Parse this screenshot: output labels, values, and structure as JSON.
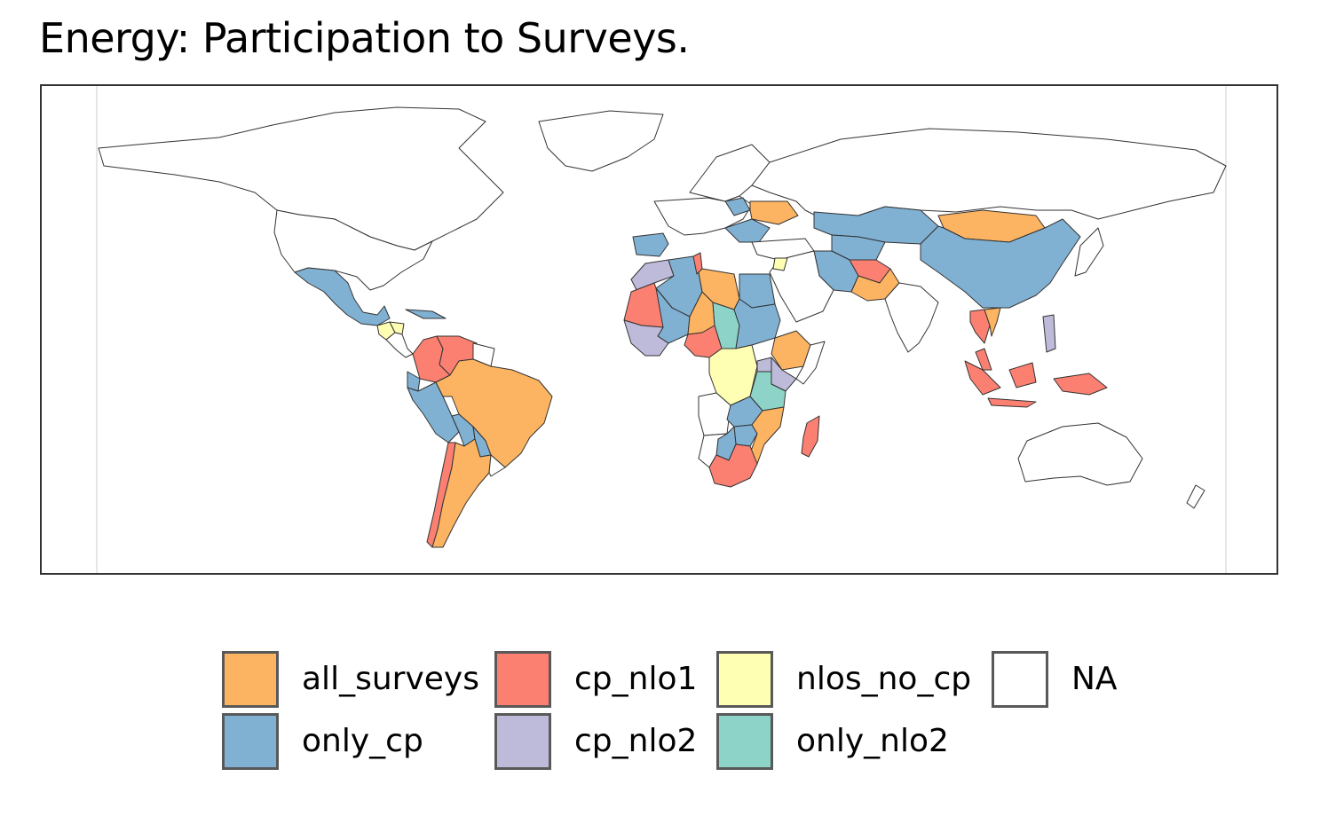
{
  "title": "Energy: Participation to Surveys.",
  "legend": {
    "items": [
      {
        "key": "all_surveys",
        "label": "all_surveys",
        "color": "#FDB462"
      },
      {
        "key": "only_cp",
        "label": "only_cp",
        "color": "#80B1D3"
      },
      {
        "key": "cp_nlo1",
        "label": "cp_nlo1",
        "color": "#FB8072"
      },
      {
        "key": "cp_nlo2",
        "label": "cp_nlo2",
        "color": "#BEBADA"
      },
      {
        "key": "nlos_no_cp",
        "label": "nlos_no_cp",
        "color": "#FFFFB3"
      },
      {
        "key": "only_nlo2",
        "label": "only_nlo2",
        "color": "#8DD3C7"
      },
      {
        "key": "na",
        "label": "NA",
        "color": "#FFFFFF"
      }
    ]
  },
  "map": {
    "outline_color": "#333333",
    "regions": [
      {
        "name": "Mexico",
        "category": "only_cp"
      },
      {
        "name": "Guatemala",
        "category": "nlos_no_cp"
      },
      {
        "name": "Honduras",
        "category": "nlos_no_cp"
      },
      {
        "name": "Colombia",
        "category": "cp_nlo1"
      },
      {
        "name": "Venezuela",
        "category": "cp_nlo1"
      },
      {
        "name": "Ecuador",
        "category": "only_cp"
      },
      {
        "name": "Peru",
        "category": "only_cp"
      },
      {
        "name": "Brazil",
        "category": "all_surveys"
      },
      {
        "name": "Bolivia",
        "category": "only_cp"
      },
      {
        "name": "Paraguay",
        "category": "only_cp"
      },
      {
        "name": "Argentina",
        "category": "all_surveys"
      },
      {
        "name": "Chile",
        "category": "cp_nlo1"
      },
      {
        "name": "Morocco",
        "category": "cp_nlo2"
      },
      {
        "name": "Algeria",
        "category": "only_cp"
      },
      {
        "name": "Tunisia",
        "category": "cp_nlo1"
      },
      {
        "name": "Libya",
        "category": "all_surveys"
      },
      {
        "name": "Egypt",
        "category": "only_cp"
      },
      {
        "name": "Mauritania",
        "category": "cp_nlo1"
      },
      {
        "name": "Mali",
        "category": "only_cp"
      },
      {
        "name": "Niger",
        "category": "all_surveys"
      },
      {
        "name": "Chad",
        "category": "only_nlo2"
      },
      {
        "name": "Sudan",
        "category": "only_cp"
      },
      {
        "name": "Nigeria",
        "category": "cp_nlo1"
      },
      {
        "name": "Ethiopia",
        "category": "all_surveys"
      },
      {
        "name": "DR Congo",
        "category": "nlos_no_cp"
      },
      {
        "name": "Uganda",
        "category": "cp_nlo2"
      },
      {
        "name": "Kenya",
        "category": "cp_nlo2"
      },
      {
        "name": "Tanzania",
        "category": "only_nlo2"
      },
      {
        "name": "Zambia",
        "category": "only_cp"
      },
      {
        "name": "Mozambique",
        "category": "all_surveys"
      },
      {
        "name": "Zimbabwe",
        "category": "only_cp"
      },
      {
        "name": "Botswana",
        "category": "only_cp"
      },
      {
        "name": "South Africa",
        "category": "cp_nlo1"
      },
      {
        "name": "Madagascar",
        "category": "cp_nlo1"
      },
      {
        "name": "Kazakhstan",
        "category": "only_cp"
      },
      {
        "name": "Mongolia",
        "category": "all_surveys"
      },
      {
        "name": "China",
        "category": "only_cp"
      },
      {
        "name": "Iran",
        "category": "only_cp"
      },
      {
        "name": "Afghanistan",
        "category": "cp_nlo1"
      },
      {
        "name": "Pakistan",
        "category": "all_surveys"
      },
      {
        "name": "Jordan",
        "category": "nlos_no_cp"
      },
      {
        "name": "Ukraine",
        "category": "all_surveys"
      },
      {
        "name": "Poland",
        "category": "only_cp"
      },
      {
        "name": "Spain",
        "category": "only_cp"
      },
      {
        "name": "Thailand",
        "category": "cp_nlo1"
      },
      {
        "name": "Vietnam",
        "category": "all_surveys"
      },
      {
        "name": "Malaysia",
        "category": "cp_nlo1"
      },
      {
        "name": "Indonesia",
        "category": "cp_nlo1"
      },
      {
        "name": "Philippines",
        "category": "cp_nlo2"
      }
    ]
  }
}
